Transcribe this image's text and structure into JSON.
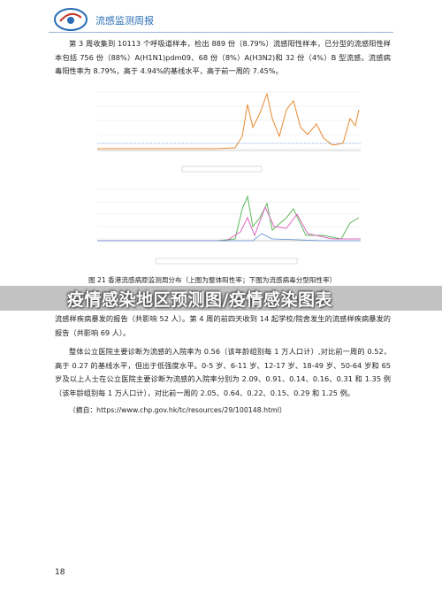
{
  "header": {
    "title": "流感监测周报"
  },
  "paragraphs": [
    "第 3 周收集到 10113 个呼吸道样本，检出 889 份（8.79%）流感阳性样本，已分型的流感阳性样本包括 756 份（88%）A(H1N1)pdm09、68 份（8%）A(H3N2)和 32 份（4%）B 型流感。流感病毒阳性率为 8.79%，高于 4.94%的基线水平，高于前一周的 7.45%。",
    "流感样疾病暴发的报告（共影响 52 人）。第 4 周的前四天收到 14 起学校/院舍发生的流感样疾病暴发的报告（共影响 69 人）。",
    "整体公立医院主要诊断为流感的入院率为 0.56（该年龄组别每 1 万人口计）,对比前一周的 0.52，高于 0.27 的基线水平，但出于低强度水平。0-5 岁、6-11 岁、12-17 岁、18-49 岁、50-64 岁和 65 岁及以上人士在公立医院主要诊断为流感的入院率分别为 2.09、0.91、0.14、0.16、0.31 和 1.35 例（该年龄组别每 1 万人口计），对比前一周的 2.05、0.64、0.22、0.15、0.29 和 1.25 例。"
  ],
  "figure": {
    "caption": "图 21   香港流感病原监测周分布（上图为整体阳性率；下图为流感病毒分型阳性率）"
  },
  "banner": "疫情感染地区预测图/疫情感染图表",
  "source": "（摘自：https://www.chp.gov.hk/tc/resources/29/100148.html）",
  "page_number": "18"
}
